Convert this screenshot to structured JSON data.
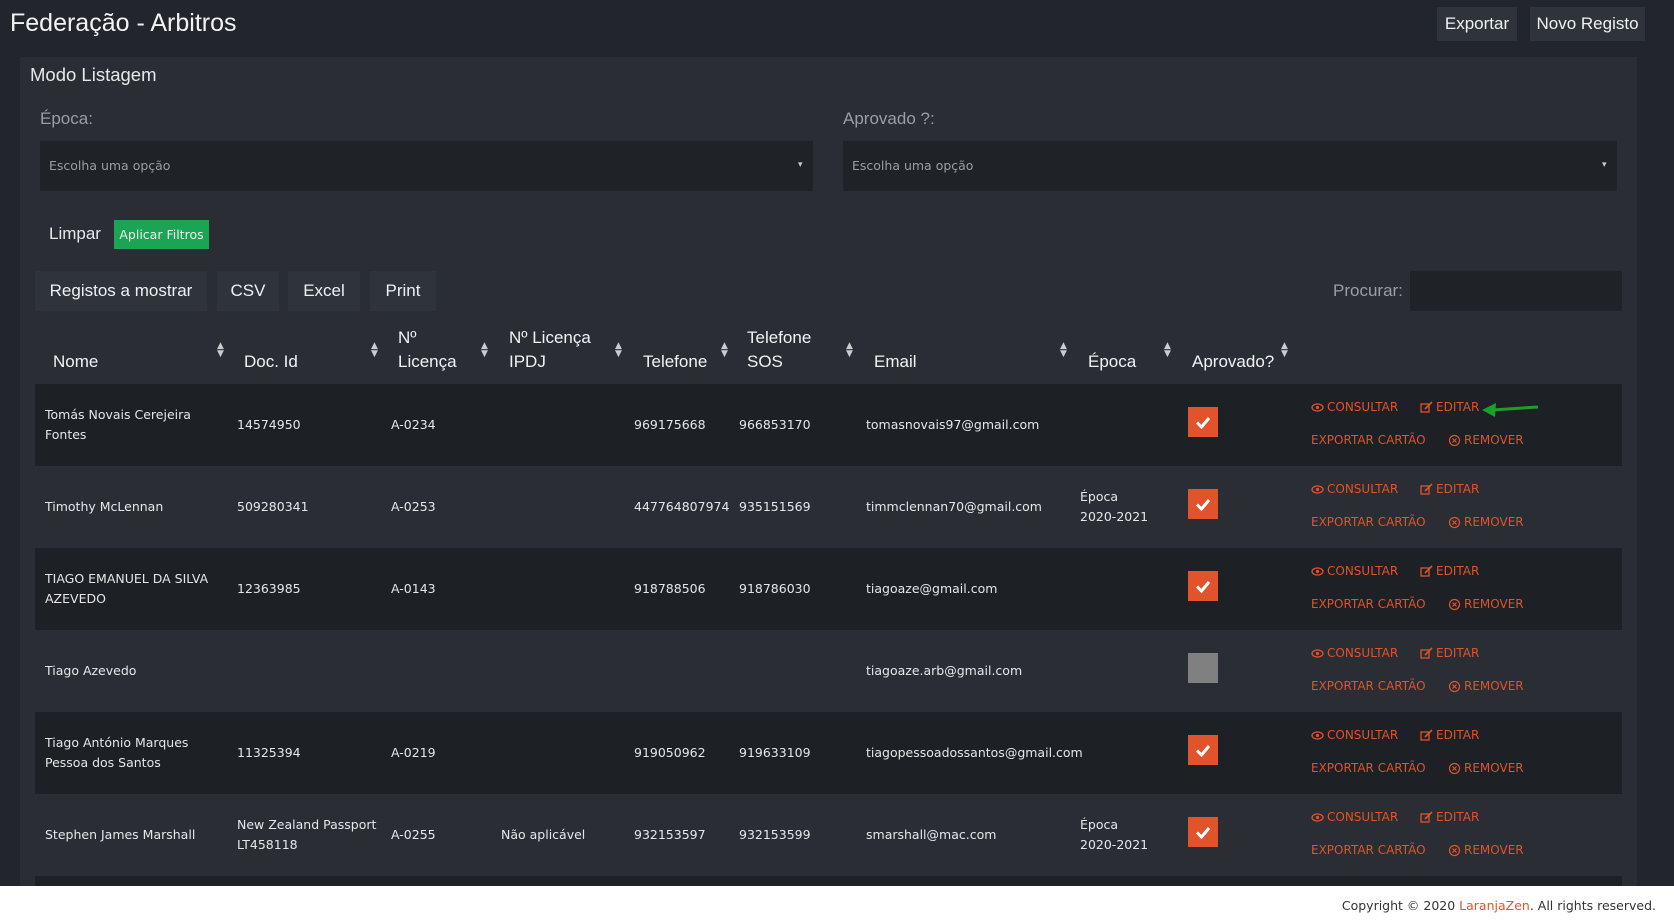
{
  "header": {
    "title": "Federação - Arbitros",
    "buttons": [
      "Exportar",
      "Novo Registo"
    ]
  },
  "panel": {
    "title": "Modo Listagem"
  },
  "filters": [
    {
      "label": "Época:",
      "placeholder": "Escolha uma opção"
    },
    {
      "label": "Aprovado ?:",
      "placeholder": "Escolha uma opção"
    }
  ],
  "filter_actions": {
    "clear": "Limpar",
    "apply": "Aplicar Filtros"
  },
  "toolbar": {
    "buttons": [
      "Registos a mostrar",
      "CSV",
      "Excel",
      "Print"
    ],
    "search_label": "Procurar:"
  },
  "table": {
    "columns": [
      [
        "Nome"
      ],
      [
        "Doc. Id"
      ],
      [
        "Nº",
        "Licença"
      ],
      [
        "Nº Licença",
        "IPDJ"
      ],
      [
        "Telefone"
      ],
      [
        "Telefone",
        "SOS"
      ],
      [
        "Email"
      ],
      [
        "Época"
      ],
      [
        "Aprovado?"
      ]
    ],
    "actions": [
      "CONSULTAR",
      "EDITAR",
      "EXPORTAR CARTÃO",
      "REMOVER"
    ],
    "rows": [
      {
        "cells": [
          [
            "Tomás Novais Cerejeira",
            "Fontes"
          ],
          [
            "14574950"
          ],
          [
            "A-0234"
          ],
          [],
          [
            "969175668"
          ],
          [
            "966853170"
          ],
          [
            "tomasnovais97@gmail.com"
          ],
          []
        ],
        "approved": true
      },
      {
        "cells": [
          [
            "Timothy McLennan"
          ],
          [
            "509280341"
          ],
          [
            "A-0253"
          ],
          [],
          [
            "447764807974"
          ],
          [
            "935151569"
          ],
          [
            "timmclennan70@gmail.com"
          ],
          [
            "Época",
            "2020-2021"
          ]
        ],
        "approved": true
      },
      {
        "cells": [
          [
            "TIAGO EMANUEL DA SILVA",
            "AZEVEDO"
          ],
          [
            "12363985"
          ],
          [
            "A-0143"
          ],
          [],
          [
            "918788506"
          ],
          [
            "918786030"
          ],
          [
            "tiagoaze@gmail.com"
          ],
          []
        ],
        "approved": true
      },
      {
        "cells": [
          [
            "Tiago Azevedo"
          ],
          [],
          [],
          [],
          [],
          [],
          [
            "tiagoaze.arb@gmail.com"
          ],
          []
        ],
        "approved": false
      },
      {
        "cells": [
          [
            "Tiago António Marques",
            "Pessoa dos Santos"
          ],
          [
            "11325394"
          ],
          [
            "A-0219"
          ],
          [],
          [
            "919050962"
          ],
          [
            "919633109"
          ],
          [
            "tiagopessoadossantos@gmail.com"
          ],
          []
        ],
        "approved": true
      },
      {
        "cells": [
          [
            "Stephen James Marshall"
          ],
          [
            "New Zealand Passport",
            "LT458118"
          ],
          [
            "A-0255"
          ],
          [
            "Não aplicável"
          ],
          [
            "932153597"
          ],
          [
            "932153599"
          ],
          [
            "smarshall@mac.com"
          ],
          [
            "Época",
            "2020-2021"
          ]
        ],
        "approved": true
      }
    ]
  },
  "footer": {
    "prefix": "Copyright © 2020 ",
    "brand": "LaranjaZen",
    "suffix": ". All rights reserved."
  }
}
